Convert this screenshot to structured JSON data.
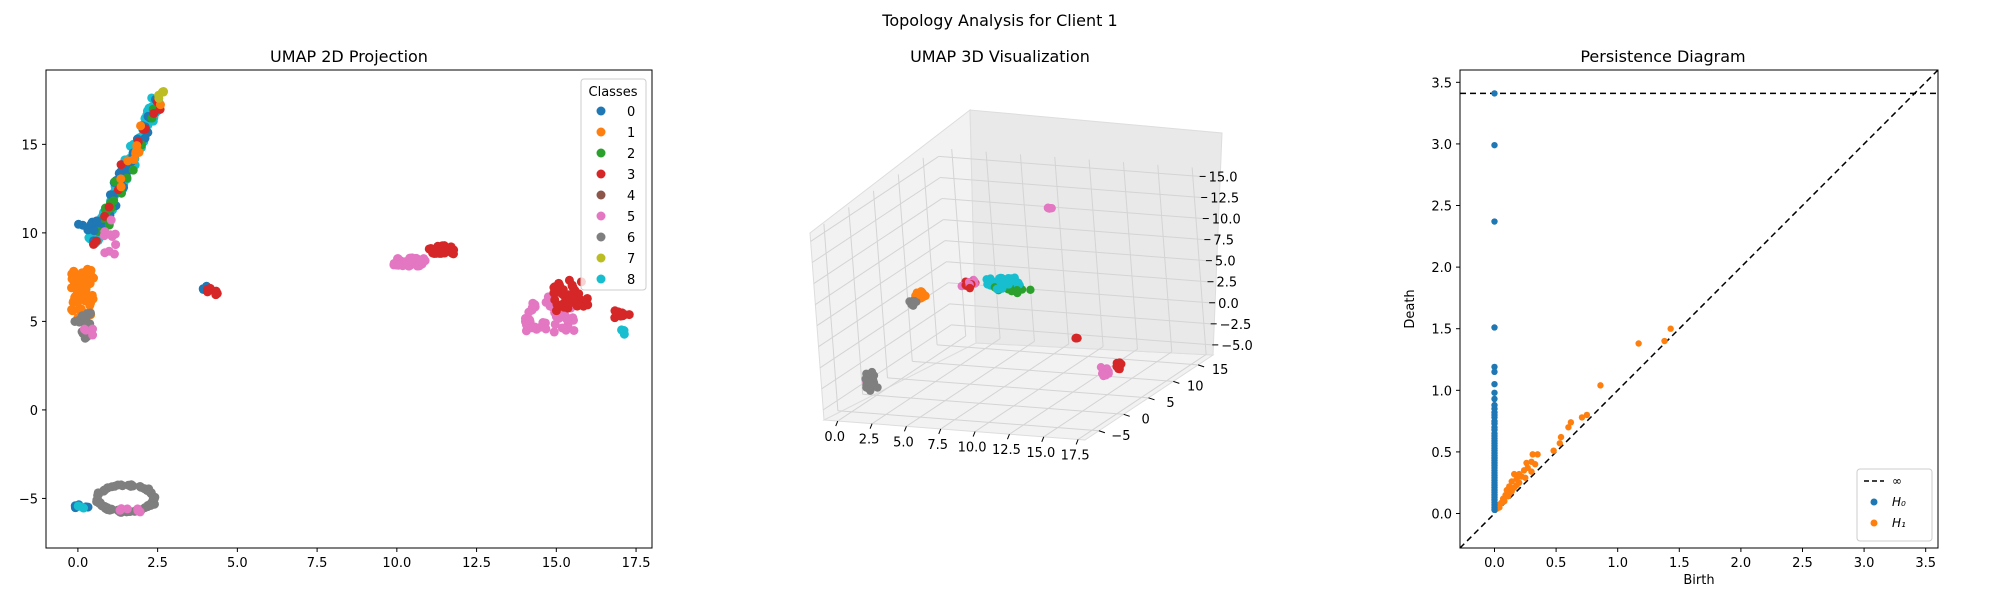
{
  "figure": {
    "suptitle": "Topology Analysis for Client 1"
  },
  "palette": {
    "classes": [
      "#1f77b4",
      "#ff7f0e",
      "#2ca02c",
      "#d62728",
      "#8c564b",
      "#e377c2",
      "#7f7f7f",
      "#bcbd22",
      "#17becf"
    ],
    "h0": "#1f77b4",
    "h1": "#ff7f0e"
  },
  "chart_data": [
    {
      "type": "scatter",
      "title": "UMAP 2D Projection",
      "xlabel": "",
      "ylabel": "",
      "xlim": [
        -1.0,
        18.0
      ],
      "ylim": [
        -7.8,
        19.2
      ],
      "xticks": [
        0.0,
        2.5,
        5.0,
        7.5,
        10.0,
        12.5,
        15.0,
        17.5
      ],
      "xtick_labels": [
        "0.0",
        "2.5",
        "5.0",
        "7.5",
        "10.0",
        "12.5",
        "15.0",
        "17.5"
      ],
      "yticks": [
        -5,
        0,
        5,
        10,
        15
      ],
      "ytick_labels": [
        "−5",
        "0",
        "5",
        "10",
        "15"
      ],
      "legend": {
        "title": "Classes",
        "location": "upper-right",
        "entries": [
          "0",
          "1",
          "2",
          "3",
          "4",
          "5",
          "6",
          "7",
          "8"
        ]
      },
      "clusters": [
        {
          "class": 8,
          "x_range": [
            0.5,
            2.5
          ],
          "y_range": [
            9.5,
            17.5
          ],
          "diagonal": true,
          "n": 160,
          "spread": 0.25
        },
        {
          "class": 0,
          "x_range": [
            0.5,
            2.5
          ],
          "y_range": [
            9.5,
            17.5
          ],
          "diagonal": true,
          "n": 35,
          "spread": 0.3
        },
        {
          "class": 2,
          "x_range": [
            0.5,
            2.5
          ],
          "y_range": [
            9.5,
            17.5
          ],
          "diagonal": true,
          "n": 18,
          "spread": 0.3
        },
        {
          "class": 3,
          "x_range": [
            0.5,
            2.5
          ],
          "y_range": [
            9.5,
            17.5
          ],
          "diagonal": true,
          "n": 12,
          "spread": 0.35
        },
        {
          "class": 1,
          "x_range": [
            0.5,
            2.5
          ],
          "y_range": [
            9.5,
            17.5
          ],
          "diagonal": true,
          "n": 10,
          "spread": 0.35
        },
        {
          "class": 7,
          "x_range": [
            2.4,
            2.7
          ],
          "y_range": [
            17.4,
            18.0
          ],
          "diagonal": true,
          "n": 5,
          "spread": 0.08
        },
        {
          "class": 5,
          "x_range": [
            0.8,
            1.2
          ],
          "y_range": [
            8.8,
            11.0
          ],
          "diagonal": false,
          "n": 10,
          "spread": 0.1
        },
        {
          "class": 0,
          "x_range": [
            0.0,
            0.6
          ],
          "y_range": [
            10.0,
            10.8
          ],
          "diagonal": false,
          "n": 8,
          "spread": 0.12
        },
        {
          "class": 1,
          "x_range": [
            -0.2,
            0.5
          ],
          "y_range": [
            5.2,
            8.0
          ],
          "diagonal": false,
          "n": 60,
          "spread": 0.15
        },
        {
          "class": 6,
          "x_range": [
            -0.1,
            0.4
          ],
          "y_range": [
            4.0,
            5.6
          ],
          "diagonal": false,
          "n": 20,
          "spread": 0.1
        },
        {
          "class": 5,
          "x_range": [
            0.1,
            0.6
          ],
          "y_range": [
            4.2,
            4.6
          ],
          "diagonal": false,
          "n": 4,
          "spread": 0.08
        },
        {
          "class": 0,
          "x_range": [
            3.9,
            4.1
          ],
          "y_range": [
            6.8,
            7.0
          ],
          "diagonal": false,
          "n": 3,
          "spread": 0.05
        },
        {
          "class": 3,
          "x_range": [
            4.0,
            4.4
          ],
          "y_range": [
            6.5,
            6.9
          ],
          "diagonal": false,
          "n": 8,
          "spread": 0.06
        },
        {
          "class": 5,
          "x_range": [
            9.9,
            10.9
          ],
          "y_range": [
            8.1,
            8.6
          ],
          "diagonal": false,
          "n": 40,
          "spread": 0.06
        },
        {
          "class": 3,
          "x_range": [
            11.0,
            11.8
          ],
          "y_range": [
            8.8,
            9.3
          ],
          "diagonal": false,
          "n": 22,
          "spread": 0.06
        },
        {
          "class": 5,
          "x_range": [
            14.0,
            15.6
          ],
          "y_range": [
            4.3,
            6.4
          ],
          "diagonal": false,
          "n": 55,
          "spread": 0.1
        },
        {
          "class": 3,
          "x_range": [
            14.9,
            16.0
          ],
          "y_range": [
            5.6,
            7.4
          ],
          "diagonal": false,
          "n": 40,
          "spread": 0.1
        },
        {
          "class": 3,
          "x_range": [
            16.8,
            17.3
          ],
          "y_range": [
            5.2,
            5.6
          ],
          "diagonal": false,
          "n": 8,
          "spread": 0.06
        },
        {
          "class": 8,
          "x_range": [
            17.0,
            17.2
          ],
          "y_range": [
            4.2,
            4.7
          ],
          "diagonal": false,
          "n": 4,
          "spread": 0.05
        },
        {
          "class": 0,
          "x_range": [
            -0.1,
            0.4
          ],
          "y_range": [
            -5.6,
            -5.3
          ],
          "diagonal": false,
          "n": 5,
          "spread": 0.05
        },
        {
          "class": 8,
          "x_range": [
            0.0,
            0.2
          ],
          "y_range": [
            -5.6,
            -5.4
          ],
          "diagonal": false,
          "n": 3,
          "spread": 0.05
        }
      ],
      "rings": [
        {
          "class": 6,
          "cx": 1.5,
          "cy": -5.0,
          "rx": 0.9,
          "ry": 0.75,
          "n": 80
        },
        {
          "class": 5,
          "cx": 1.6,
          "cy": -5.8,
          "rx": 0.35,
          "ry": 0.25,
          "n": 6
        }
      ]
    },
    {
      "type": "scatter",
      "title": "UMAP 3D Visualization",
      "xlabel": "",
      "ylabel": "",
      "zlabel": "",
      "xlim": [
        -1.0,
        18.0
      ],
      "ylim": [
        -7.8,
        18.0
      ],
      "zlim": [
        -6.2,
        16.0
      ],
      "xticks": [
        0.0,
        2.5,
        5.0,
        7.5,
        10.0,
        12.5,
        15.0,
        17.5
      ],
      "xtick_labels": [
        "0.0",
        "2.5",
        "5.0",
        "7.5",
        "10.0",
        "12.5",
        "15.0",
        "17.5"
      ],
      "yticks": [
        -5,
        0,
        5,
        10,
        15
      ],
      "ytick_labels": [
        "−5",
        "0",
        "5",
        "10",
        "15"
      ],
      "zticks": [
        -5.0,
        -2.5,
        0.0,
        2.5,
        5.0,
        7.5,
        10.0,
        12.5,
        15.0
      ],
      "ztick_labels": [
        "−5.0",
        "−2.5",
        "0.0",
        "2.5",
        "5.0",
        "7.5",
        "10.0",
        "12.5",
        "15.0"
      ],
      "grid": true,
      "clusters": [
        {
          "class": 8,
          "x": 6.5,
          "y": 9.0,
          "z": 4.5,
          "sx": 1.5,
          "sy": 1.5,
          "sz": 0.8,
          "n": 80
        },
        {
          "class": 2,
          "x": 7.0,
          "y": 9.0,
          "z": 4.0,
          "sx": 1.5,
          "sy": 1.5,
          "sz": 0.8,
          "n": 15
        },
        {
          "class": 1,
          "x": 1.5,
          "y": 6.0,
          "z": 3.5,
          "sx": 0.6,
          "sy": 1.0,
          "sz": 0.8,
          "n": 25
        },
        {
          "class": 6,
          "x": 1.2,
          "y": 5.0,
          "z": 3.0,
          "sx": 0.4,
          "sy": 0.8,
          "sz": 0.6,
          "n": 10
        },
        {
          "class": 3,
          "x": 4.5,
          "y": 8.0,
          "z": 4.5,
          "sx": 1.0,
          "sy": 1.0,
          "sz": 0.5,
          "n": 10
        },
        {
          "class": 5,
          "x": 4.5,
          "y": 8.0,
          "z": 4.5,
          "sx": 1.0,
          "sy": 1.0,
          "sz": 0.5,
          "n": 8
        },
        {
          "class": 6,
          "x": 1.5,
          "y": -5.0,
          "z": -2.5,
          "sx": 0.5,
          "sy": 0.6,
          "sz": 1.3,
          "n": 45
        },
        {
          "class": 5,
          "x": 1.5,
          "y": -5.0,
          "z": -3.0,
          "sx": 0.5,
          "sy": 0.5,
          "sz": 0.8,
          "n": 6
        },
        {
          "class": 5,
          "x": 10.5,
          "y": 8.5,
          "z": 14.0,
          "sx": 0.3,
          "sy": 0.2,
          "sz": 0.1,
          "n": 8
        },
        {
          "class": 3,
          "x": 11.5,
          "y": 9.0,
          "z": -1.5,
          "sx": 0.15,
          "sy": 0.1,
          "sz": 0.1,
          "n": 5
        },
        {
          "class": 5,
          "x": 15.0,
          "y": 5.0,
          "z": -3.5,
          "sx": 0.5,
          "sy": 0.8,
          "sz": 0.7,
          "n": 25
        },
        {
          "class": 3,
          "x": 15.6,
          "y": 6.0,
          "z": -3.0,
          "sx": 0.3,
          "sy": 0.6,
          "sz": 0.8,
          "n": 20
        }
      ]
    },
    {
      "type": "scatter",
      "title": "Persistence Diagram",
      "xlabel": "Birth",
      "ylabel": "Death",
      "xlim": [
        -0.28,
        3.6
      ],
      "ylim": [
        -0.28,
        3.6
      ],
      "xticks": [
        0.0,
        0.5,
        1.0,
        1.5,
        2.0,
        2.5,
        3.0,
        3.5
      ],
      "xtick_labels": [
        "0.0",
        "0.5",
        "1.0",
        "1.5",
        "2.0",
        "2.5",
        "3.0",
        "3.5"
      ],
      "yticks": [
        0.0,
        0.5,
        1.0,
        1.5,
        2.0,
        2.5,
        3.0,
        3.5
      ],
      "ytick_labels": [
        "0.0",
        "0.5",
        "1.0",
        "1.5",
        "2.0",
        "2.5",
        "3.0",
        "3.5"
      ],
      "infinity_death": 3.41,
      "legend": {
        "location": "lower-right",
        "entries": [
          "∞",
          "H₀",
          "H₁"
        ]
      },
      "H0": {
        "births": 0.0,
        "deaths": [
          3.41,
          2.99,
          2.37,
          1.51,
          1.19,
          1.15,
          1.05,
          0.98,
          0.93,
          0.88,
          0.85,
          0.82,
          0.8,
          0.78,
          0.75,
          0.73,
          0.7,
          0.68,
          0.65,
          0.63,
          0.61,
          0.59,
          0.57,
          0.55,
          0.53,
          0.51,
          0.49,
          0.47,
          0.45,
          0.43,
          0.41,
          0.39,
          0.37,
          0.35,
          0.33,
          0.31,
          0.29,
          0.27,
          0.25,
          0.23,
          0.21,
          0.19,
          0.17,
          0.15,
          0.13,
          0.11,
          0.09,
          0.07,
          0.05,
          0.03
        ]
      },
      "H1": {
        "points": [
          [
            1.43,
            1.5
          ],
          [
            1.17,
            1.38
          ],
          [
            1.38,
            1.4
          ],
          [
            0.86,
            1.04
          ],
          [
            0.75,
            0.8
          ],
          [
            0.71,
            0.78
          ],
          [
            0.62,
            0.74
          ],
          [
            0.6,
            0.7
          ],
          [
            0.54,
            0.62
          ],
          [
            0.53,
            0.57
          ],
          [
            0.48,
            0.51
          ],
          [
            0.35,
            0.48
          ],
          [
            0.31,
            0.48
          ],
          [
            0.3,
            0.42
          ],
          [
            0.26,
            0.41
          ],
          [
            0.33,
            0.4
          ],
          [
            0.27,
            0.37
          ],
          [
            0.24,
            0.35
          ],
          [
            0.3,
            0.34
          ],
          [
            0.2,
            0.32
          ],
          [
            0.16,
            0.32
          ],
          [
            0.22,
            0.3
          ],
          [
            0.25,
            0.29
          ],
          [
            0.18,
            0.28
          ],
          [
            0.14,
            0.26
          ],
          [
            0.2,
            0.25
          ],
          [
            0.12,
            0.22
          ],
          [
            0.16,
            0.21
          ],
          [
            0.1,
            0.19
          ],
          [
            0.14,
            0.18
          ],
          [
            0.09,
            0.15
          ],
          [
            0.11,
            0.14
          ],
          [
            0.07,
            0.12
          ],
          [
            0.08,
            0.1
          ],
          [
            0.06,
            0.09
          ],
          [
            0.05,
            0.08
          ],
          [
            0.04,
            0.07
          ],
          [
            0.03,
            0.06
          ],
          [
            0.04,
            0.05
          ],
          [
            0.02,
            0.04
          ],
          [
            0.12,
            0.16
          ],
          [
            0.18,
            0.23
          ]
        ]
      }
    }
  ]
}
